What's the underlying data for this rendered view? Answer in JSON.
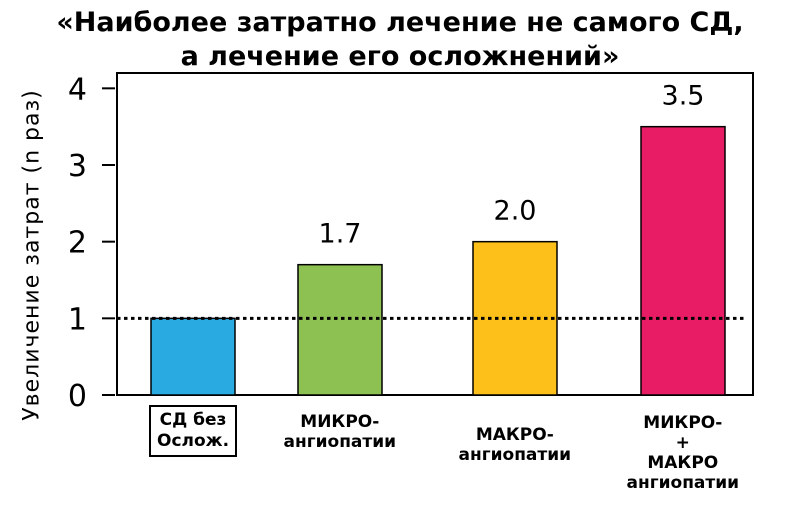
{
  "title": {
    "line1": "«Наиболее затратно лечение  не самого СД,",
    "line2": "а лечение его осложнений»"
  },
  "chart_data": {
    "type": "bar",
    "title": "«Наиболее затратно лечение  не самого СД, а лечение его осложнений»",
    "ylabel": "Увеличение затрат (n раз)",
    "xlabel": "",
    "ylim": [
      0,
      4.2
    ],
    "yticks": [
      0,
      1,
      2,
      3,
      4
    ],
    "categories": [
      "СД без Ослож.",
      "МИКРО- ангиопатии",
      "МАКРО- ангиопатии",
      "МИКРО- + МАКРО ангиопатии"
    ],
    "category_lines": [
      [
        "СД без",
        "Ослож."
      ],
      [
        "МИКРО-",
        "ангиопатии"
      ],
      [
        "МАКРО-",
        "ангиопатии"
      ],
      [
        "МИКРО-",
        "+",
        "МАКРО",
        "ангиопатии"
      ]
    ],
    "values": [
      1.0,
      1.7,
      2.0,
      3.5
    ],
    "value_labels": [
      "",
      "1.7",
      "2.0",
      "3.5"
    ],
    "bar_colors": [
      "#29abe2",
      "#8dc152",
      "#fdc01a",
      "#e81c64"
    ],
    "reference_line": {
      "y": 1,
      "style": "dotted"
    },
    "grid": false,
    "legend": "none"
  }
}
